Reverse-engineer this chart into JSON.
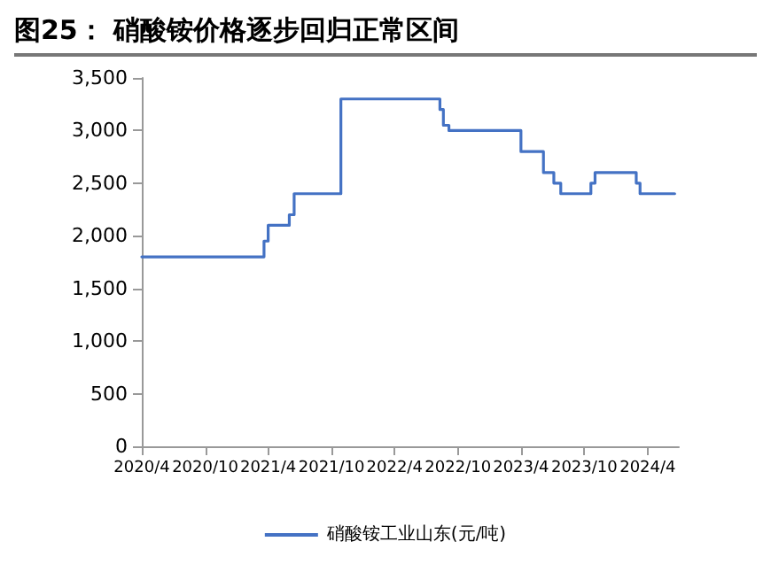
{
  "chart_data": {
    "type": "step",
    "title": "图25： 硝酸铵价格逐步回归正常区间",
    "x": [
      "2020-04-01",
      "2021-03-20",
      "2021-04-01",
      "2021-06-01",
      "2021-06-15",
      "2021-10-28",
      "2022-08-10",
      "2022-08-20",
      "2022-09-05",
      "2023-04-01",
      "2023-06-05",
      "2023-07-05",
      "2023-07-25",
      "2023-10-20",
      "2023-11-01",
      "2024-02-28",
      "2024-03-10",
      "2024-06-18"
    ],
    "series": [
      {
        "name": "硝酸铵工业山东(元/吨)",
        "color": "#4472c4",
        "values": [
          1800,
          1950,
          2100,
          2200,
          2400,
          3300,
          3200,
          3050,
          3000,
          2800,
          2600,
          2500,
          2400,
          2500,
          2600,
          2500,
          2400,
          2400
        ]
      }
    ],
    "xlim": [
      "2020-04-01",
      "2024-06-30"
    ],
    "xticks": [
      {
        "value": "2020-04",
        "label": "2020/4"
      },
      {
        "value": "2020-10",
        "label": "2020/10"
      },
      {
        "value": "2021-04",
        "label": "2021/4"
      },
      {
        "value": "2021-10",
        "label": "2021/10"
      },
      {
        "value": "2022-04",
        "label": "2022/4"
      },
      {
        "value": "2022-10",
        "label": "2022/10"
      },
      {
        "value": "2023-04",
        "label": "2023/4"
      },
      {
        "value": "2023-10",
        "label": "2023/10"
      },
      {
        "value": "2024-04",
        "label": "2024/4"
      }
    ],
    "ylim": [
      0,
      3500
    ],
    "yticks": [
      {
        "value": 0,
        "label": "0"
      },
      {
        "value": 500,
        "label": "500"
      },
      {
        "value": 1000,
        "label": "1,000"
      },
      {
        "value": 1500,
        "label": "1,500"
      },
      {
        "value": 2000,
        "label": "2,000"
      },
      {
        "value": 2500,
        "label": "2,500"
      },
      {
        "value": 3000,
        "label": "3,000"
      },
      {
        "value": 3500,
        "label": "3,500"
      }
    ],
    "grid": false,
    "legend": "bottom",
    "line_style": "solid",
    "marker": "none"
  }
}
